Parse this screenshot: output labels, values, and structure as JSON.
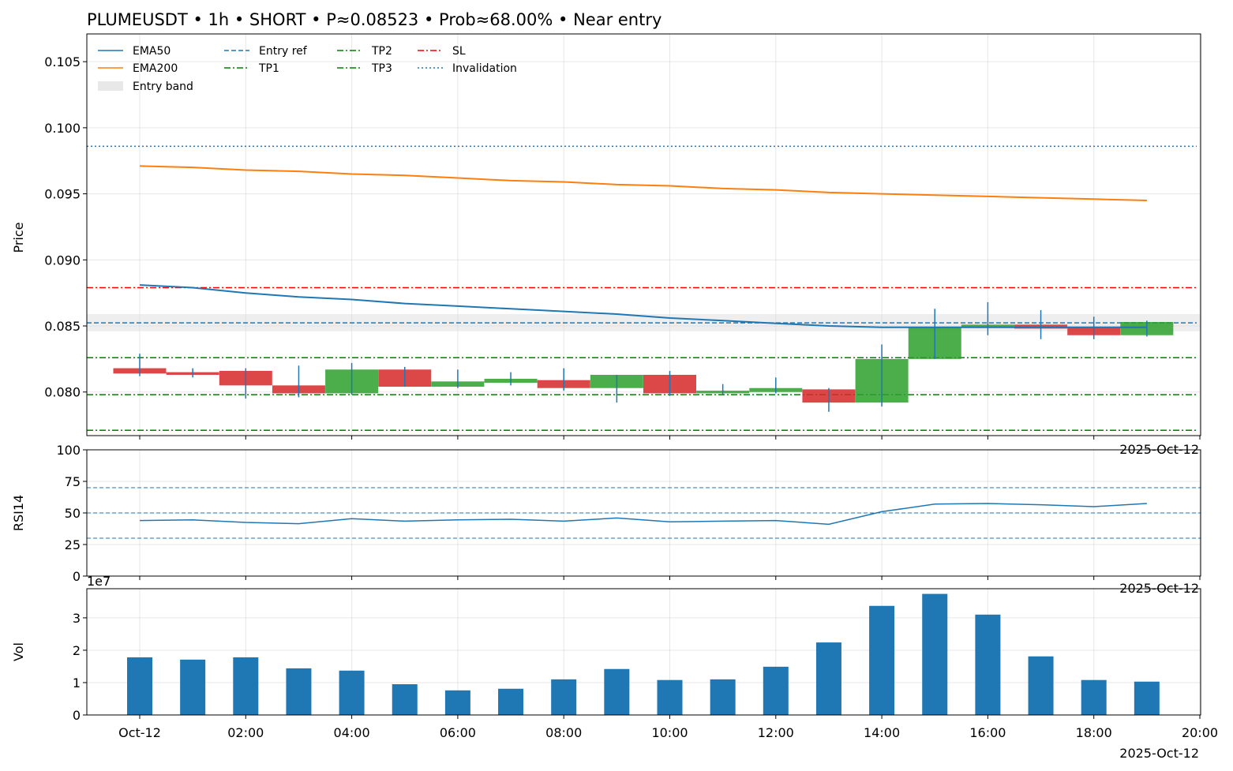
{
  "chart_data": [
    {
      "type": "candlestick",
      "title": "PLUMEUSDT • 1h • SHORT • P≈0.08523 • Prob≈68.00% • Near entry",
      "ylabel": "Price",
      "ylim": [
        0.0767,
        0.1071
      ],
      "yticks": [
        "0.080",
        "0.085",
        "0.090",
        "0.095",
        "0.100",
        "0.105"
      ],
      "corner_date": "2025-Oct-12",
      "x_hours": [
        0,
        1,
        2,
        3,
        4,
        5,
        6,
        7,
        8,
        9,
        10,
        11,
        12,
        13,
        14,
        15,
        16,
        17,
        18,
        19
      ],
      "ohlc": [
        [
          0.0818,
          0.0829,
          0.0812,
          0.0814
        ],
        [
          0.0815,
          0.0818,
          0.0811,
          0.0813
        ],
        [
          0.0816,
          0.0818,
          0.0795,
          0.0805
        ],
        [
          0.0805,
          0.082,
          0.0796,
          0.0799
        ],
        [
          0.0799,
          0.0822,
          0.0798,
          0.0817
        ],
        [
          0.0817,
          0.0819,
          0.0804,
          0.0804
        ],
        [
          0.0804,
          0.0817,
          0.0803,
          0.0808
        ],
        [
          0.0807,
          0.0815,
          0.0805,
          0.081
        ],
        [
          0.0809,
          0.0818,
          0.0801,
          0.0803
        ],
        [
          0.0803,
          0.0813,
          0.0792,
          0.0813
        ],
        [
          0.0813,
          0.0816,
          0.0797,
          0.0799
        ],
        [
          0.0799,
          0.0806,
          0.0798,
          0.0801
        ],
        [
          0.08,
          0.0811,
          0.0799,
          0.0803
        ],
        [
          0.0802,
          0.0803,
          0.0785,
          0.0792
        ],
        [
          0.0792,
          0.0836,
          0.0789,
          0.0825
        ],
        [
          0.0825,
          0.0863,
          0.0825,
          0.0849
        ],
        [
          0.0849,
          0.0868,
          0.0843,
          0.0851
        ],
        [
          0.0851,
          0.0862,
          0.084,
          0.0848
        ],
        [
          0.0849,
          0.0857,
          0.084,
          0.0843
        ],
        [
          0.0843,
          0.0854,
          0.0842,
          0.0853
        ]
      ],
      "ema50": [
        0.0881,
        0.0879,
        0.0875,
        0.0872,
        0.087,
        0.0867,
        0.0865,
        0.0863,
        0.0861,
        0.0859,
        0.0856,
        0.0854,
        0.0852,
        0.085,
        0.0849,
        0.0849,
        0.0849,
        0.0849,
        0.0849,
        0.0849
      ],
      "ema200": [
        0.0971,
        0.097,
        0.0968,
        0.0967,
        0.0965,
        0.0964,
        0.0962,
        0.096,
        0.0959,
        0.0957,
        0.0956,
        0.0954,
        0.0953,
        0.0951,
        0.095,
        0.0949,
        0.0948,
        0.0947,
        0.0946,
        0.0945
      ],
      "levels": {
        "entry_ref": 0.08523,
        "entry_band": [
          0.0846,
          0.0859
        ],
        "tp1": 0.0798,
        "tp2": 0.0826,
        "tp3": 0.0771,
        "sl": 0.0879,
        "invalidation": 0.0986
      },
      "legend": {
        "placement": "top-left",
        "entries": [
          {
            "key": "ema50",
            "label": "EMA50",
            "color": "#1f77b4",
            "style": "solid"
          },
          {
            "key": "ema200",
            "label": "EMA200",
            "color": "#ff7f0e",
            "style": "solid"
          },
          {
            "key": "band",
            "label": "Entry band",
            "color": "#d9d9d9",
            "style": "patch"
          },
          {
            "key": "entry",
            "label": "Entry ref",
            "color": "#1f77b4",
            "style": "dashed"
          },
          {
            "key": "tp1",
            "label": "TP1",
            "color": "#008000",
            "style": "dashdot"
          },
          {
            "key": "tp2",
            "label": "TP2",
            "color": "#008000",
            "style": "dashdot"
          },
          {
            "key": "tp3",
            "label": "TP3",
            "color": "#008000",
            "style": "dashdot"
          },
          {
            "key": "sl",
            "label": "SL",
            "color": "#ff0000",
            "style": "dashdot"
          },
          {
            "key": "inv",
            "label": "Invalidation",
            "color": "#1f77b4",
            "style": "dotted"
          }
        ]
      },
      "colors": {
        "up": "#2ca02c",
        "down": "#d62728",
        "wick": "#1f77b4"
      },
      "grid": true
    },
    {
      "type": "line",
      "ylabel": "RSI14",
      "ylim": [
        0,
        100
      ],
      "yticks": [
        "0",
        "25",
        "50",
        "75",
        "100"
      ],
      "corner_date": "2025-Oct-12",
      "reference_lines": [
        30,
        50,
        70
      ],
      "values": [
        44,
        44.5,
        42.5,
        41.5,
        45.5,
        43.5,
        44.5,
        45,
        43.5,
        46,
        43,
        43.5,
        44,
        41,
        51,
        57,
        57.5,
        56.5,
        55,
        57.5
      ],
      "color": "#1f77b4",
      "grid": true
    },
    {
      "type": "bar",
      "ylabel": "Vol",
      "scale_label": "1e7",
      "ylim": [
        0,
        3.9
      ],
      "yticks": [
        "0",
        "1",
        "2",
        "3"
      ],
      "values": [
        1.78,
        1.71,
        1.78,
        1.44,
        1.37,
        0.95,
        0.76,
        0.81,
        1.1,
        1.42,
        1.08,
        1.1,
        1.49,
        2.24,
        3.37,
        3.74,
        3.1,
        1.81,
        1.08,
        1.03
      ],
      "color": "#1f77b4",
      "xticks": [
        "Oct-12",
        "02:00",
        "04:00",
        "06:00",
        "08:00",
        "10:00",
        "12:00",
        "14:00",
        "16:00",
        "18:00",
        "20:00"
      ],
      "corner_date": "2025-Oct-12",
      "grid": true
    }
  ]
}
